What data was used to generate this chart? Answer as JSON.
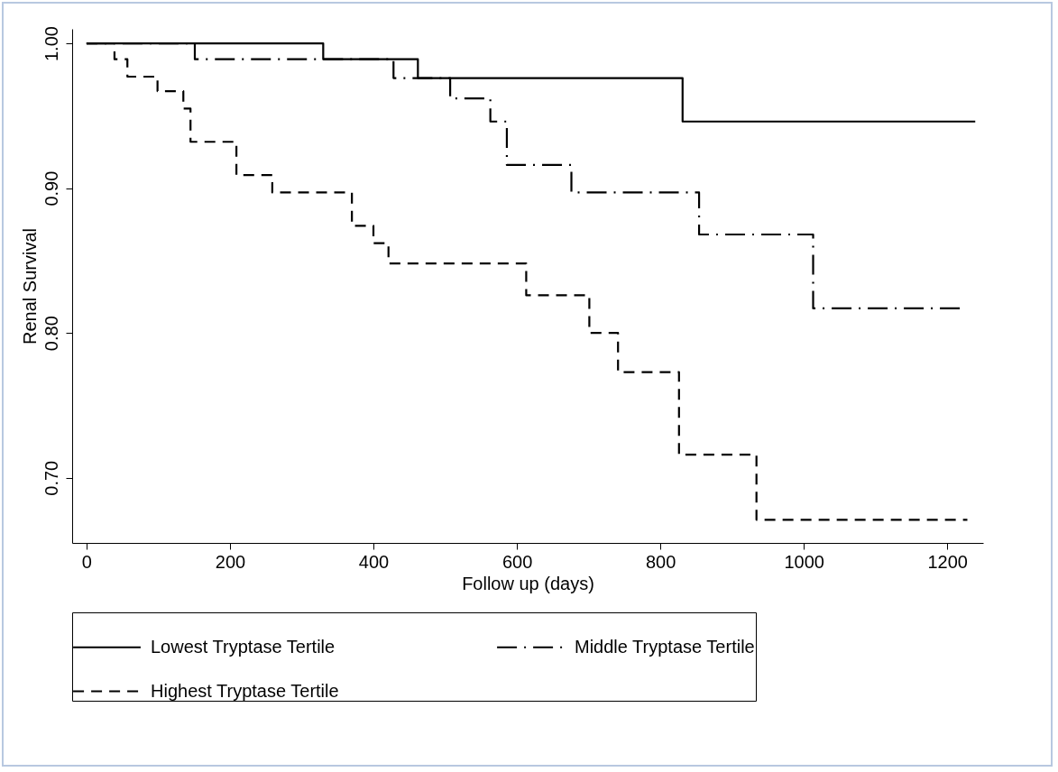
{
  "chart_data": {
    "type": "step",
    "xlabel": "Follow up (days)",
    "ylabel": "Renal Survival",
    "xlim": [
      -20,
      1250
    ],
    "xticks": [
      0,
      200,
      400,
      600,
      800,
      1000,
      1200
    ],
    "ylim": [
      0.655,
      1.01
    ],
    "yticks": [
      {
        "value": 0.7,
        "label": "0.70"
      },
      {
        "value": 0.8,
        "label": "0.80"
      },
      {
        "value": 0.9,
        "label": "0.90"
      },
      {
        "value": 1,
        "label": "1.00"
      }
    ],
    "grid": false,
    "legend": "bottom",
    "marker": "none",
    "series": [
      {
        "name": "Lowest Tryptase Tertile",
        "color": "#000000",
        "line_style": "solid",
        "x": [
          0,
          330,
          462,
          831,
          1239
        ],
        "values": [
          1,
          0.989,
          0.976,
          0.946,
          0.946
        ]
      },
      {
        "name": "Middle Tryptase Tertile",
        "color": "#000000",
        "line_style": "dashdot",
        "x": [
          0,
          151,
          428,
          507,
          563,
          586,
          676,
          854,
          1013,
          1218
        ],
        "values": [
          1,
          0.989,
          0.976,
          0.962,
          0.946,
          0.916,
          0.897,
          0.868,
          0.817,
          0.817
        ]
      },
      {
        "name": "Highest Tryptase Tertile",
        "color": "#000000",
        "line_style": "dashed",
        "x": [
          0,
          39,
          57,
          99,
          135,
          145,
          209,
          259,
          370,
          400,
          421,
          613,
          701,
          741,
          826,
          934,
          1228
        ],
        "values": [
          1,
          0.989,
          0.977,
          0.967,
          0.955,
          0.932,
          0.909,
          0.897,
          0.874,
          0.862,
          0.848,
          0.826,
          0.8,
          0.773,
          0.716,
          0.671,
          0.671
        ]
      }
    ]
  }
}
